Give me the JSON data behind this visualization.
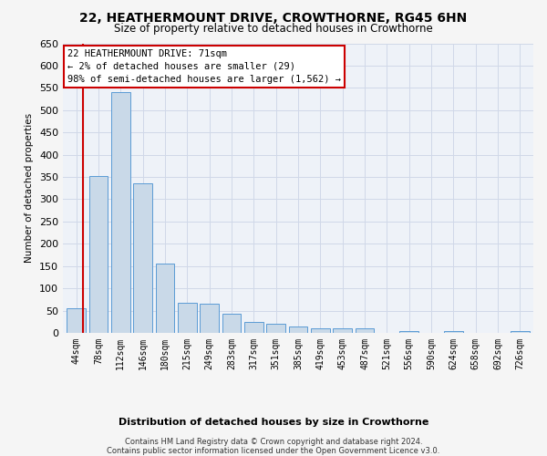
{
  "title": "22, HEATHERMOUNT DRIVE, CROWTHORNE, RG45 6HN",
  "subtitle": "Size of property relative to detached houses in Crowthorne",
  "xlabel": "Distribution of detached houses by size in Crowthorne",
  "ylabel": "Number of detached properties",
  "categories": [
    "44sqm",
    "78sqm",
    "112sqm",
    "146sqm",
    "180sqm",
    "215sqm",
    "249sqm",
    "283sqm",
    "317sqm",
    "351sqm",
    "385sqm",
    "419sqm",
    "453sqm",
    "487sqm",
    "521sqm",
    "556sqm",
    "590sqm",
    "624sqm",
    "658sqm",
    "692sqm",
    "726sqm"
  ],
  "values": [
    55,
    352,
    540,
    335,
    155,
    68,
    65,
    42,
    25,
    20,
    15,
    10,
    10,
    10,
    0,
    4,
    0,
    4,
    0,
    0,
    5
  ],
  "bar_color": "#c9d9e8",
  "bar_edge_color": "#5b9bd5",
  "annotation_text_lines": [
    "22 HEATHERMOUNT DRIVE: 71sqm",
    "← 2% of detached houses are smaller (29)",
    "98% of semi-detached houses are larger (1,562) →"
  ],
  "annotation_box_color": "#ffffff",
  "annotation_box_edge_color": "#cc0000",
  "property_line_color": "#cc0000",
  "ylim": [
    0,
    650
  ],
  "yticks": [
    0,
    50,
    100,
    150,
    200,
    250,
    300,
    350,
    400,
    450,
    500,
    550,
    600,
    650
  ],
  "grid_color": "#d0d8e8",
  "bg_color": "#eef2f8",
  "fig_bg_color": "#f5f5f5",
  "footer1": "Contains HM Land Registry data © Crown copyright and database right 2024.",
  "footer2": "Contains public sector information licensed under the Open Government Licence v3.0."
}
